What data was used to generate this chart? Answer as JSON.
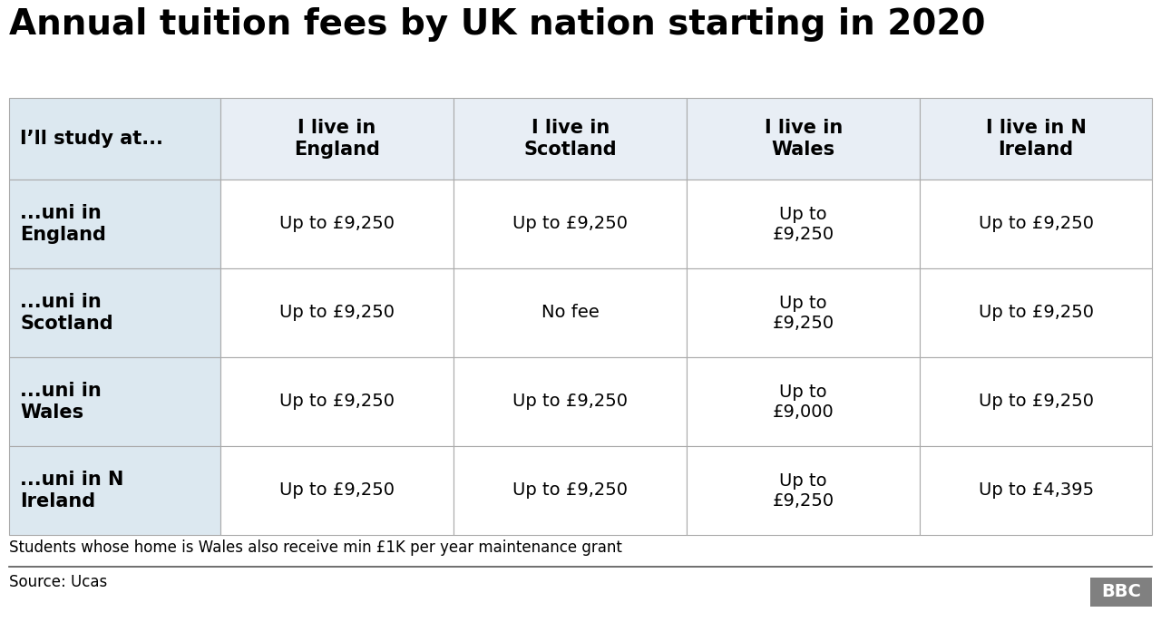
{
  "title": "Annual tuition fees by UK nation starting in 2020",
  "col_headers": [
    "I’ll study at...",
    "I live in\nEngland",
    "I live in\nScotland",
    "I live in\nWales",
    "I live in N\nIreland"
  ],
  "row_headers": [
    "...uni in\nEngland",
    "...uni in\nScotland",
    "...uni in\nWales",
    "...uni in N\nIreland"
  ],
  "table_data": [
    [
      "Up to £9,250",
      "Up to £9,250",
      "Up to\n£9,250",
      "Up to £9,250"
    ],
    [
      "Up to £9,250",
      "No fee",
      "Up to\n£9,250",
      "Up to £9,250"
    ],
    [
      "Up to £9,250",
      "Up to £9,250",
      "Up to\n£9,000",
      "Up to £9,250"
    ],
    [
      "Up to £9,250",
      "Up to £9,250",
      "Up to\n£9,250",
      "Up to £4,395"
    ]
  ],
  "footnote": "Students whose home is Wales also receive min £1K per year maintenance grant",
  "source": "Source: Ucas",
  "title_color": "#000000",
  "header_bg_color": "#e8eef5",
  "col0_header_bg": "#dce8f0",
  "row_header_bg_color": "#dce8f0",
  "data_bg_color": "#ffffff",
  "border_color": "#aaaaaa",
  "text_color": "#000000",
  "bbc_box_bg": "#808080",
  "bbc_text_color": "#ffffff",
  "title_fontsize": 28,
  "header_fontsize": 15,
  "cell_fontsize": 14,
  "row_header_fontsize": 15,
  "footnote_fontsize": 12,
  "source_fontsize": 12
}
